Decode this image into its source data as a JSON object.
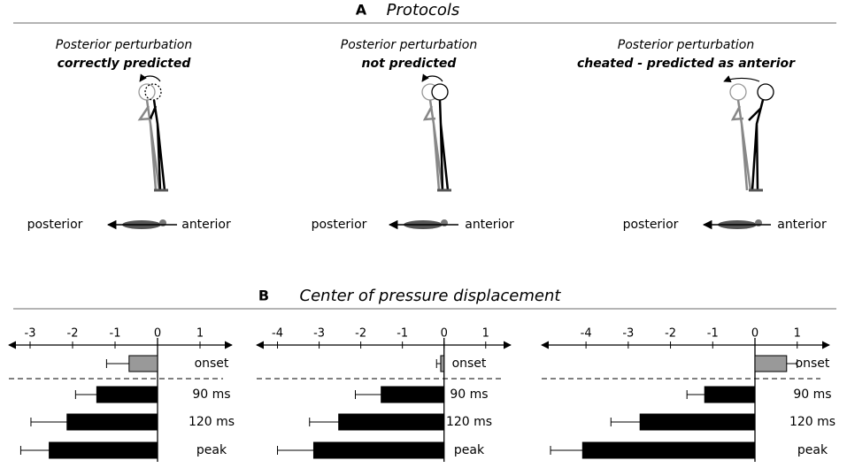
{
  "panel_a": {
    "label": "A",
    "title": "Protocols",
    "protocols": [
      {
        "title": "Posterior perturbation",
        "subtitle": "correctly predicted",
        "posterior_label": "posterior",
        "anterior_label": "anterior"
      },
      {
        "title": "Posterior perturbation",
        "subtitle": "not predicted",
        "posterior_label": "posterior",
        "anterior_label": "anterior"
      },
      {
        "title": "Posterior perturbation",
        "subtitle": "cheated - predicted as anterior",
        "posterior_label": "posterior",
        "anterior_label": "anterior"
      }
    ]
  },
  "panel_b": {
    "label": "B",
    "title": "Center of pressure displacement"
  },
  "chart_data": [
    {
      "type": "bar",
      "orientation": "horizontal",
      "categories": [
        "onset",
        "90 ms",
        "120 ms",
        "peak"
      ],
      "values": [
        -0.67,
        -1.43,
        -2.13,
        -2.55
      ],
      "errors": [
        0.53,
        0.5,
        0.85,
        0.67
      ],
      "colors": [
        "#999999",
        "#000000",
        "#000000",
        "#000000"
      ],
      "xlim": [
        -3.5,
        1.75
      ],
      "xticks": [
        -3,
        -2,
        -1,
        0,
        1
      ]
    },
    {
      "type": "bar",
      "orientation": "horizontal",
      "categories": [
        "onset",
        "90 ms",
        "120 ms",
        "peak"
      ],
      "values": [
        -0.08,
        -1.51,
        -2.53,
        -3.13
      ],
      "errors": [
        0.1,
        0.62,
        0.7,
        0.87
      ],
      "colors": [
        "#999999",
        "#000000",
        "#000000",
        "#000000"
      ],
      "xlim": [
        -4.5,
        1.6
      ],
      "xticks": [
        -4,
        -3,
        -2,
        -1,
        0,
        1
      ]
    },
    {
      "type": "bar",
      "orientation": "horizontal",
      "categories": [
        "onset",
        "90 ms",
        "120 ms",
        "peak"
      ],
      "values": [
        0.75,
        -1.19,
        -2.72,
        -4.08
      ],
      "errors": [
        0.25,
        0.42,
        0.69,
        0.76
      ],
      "colors": [
        "#999999",
        "#000000",
        "#000000",
        "#000000"
      ],
      "xlim": [
        -5.05,
        1.76
      ],
      "xticks": [
        -4,
        -3,
        -2,
        -1,
        0,
        1
      ]
    }
  ]
}
